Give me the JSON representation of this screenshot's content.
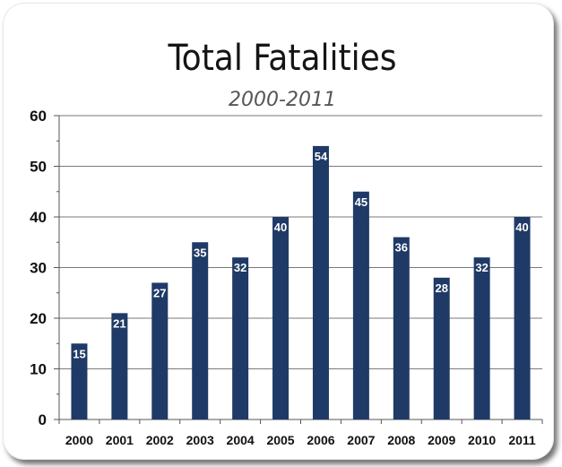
{
  "chart_data": {
    "type": "bar",
    "title": "Total Fatalities",
    "subtitle": "2000-2011",
    "xlabel": "",
    "ylabel": "",
    "categories": [
      "2000",
      "2001",
      "2002",
      "2003",
      "2004",
      "2005",
      "2006",
      "2007",
      "2008",
      "2009",
      "2010",
      "2011"
    ],
    "values": [
      15,
      21,
      27,
      35,
      32,
      40,
      54,
      45,
      36,
      28,
      32,
      40
    ],
    "ylim": [
      0,
      60
    ],
    "yticks": [
      0,
      10,
      20,
      30,
      40,
      50,
      60
    ],
    "grid": "horizontal",
    "legend": "none",
    "bar_color": "#1f3a66",
    "data_labels": true
  }
}
